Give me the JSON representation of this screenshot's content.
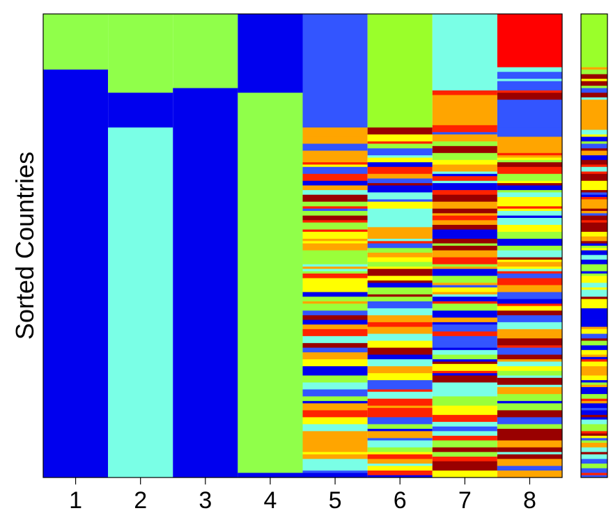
{
  "chart_data": {
    "type": "heatmap",
    "title": "",
    "ylabel": "Sorted Countries",
    "xlabel": "",
    "categories": [
      "1",
      "2",
      "3",
      "4",
      "5",
      "6",
      "7",
      "8"
    ],
    "grid": false,
    "legend": "none",
    "n_rows": 200,
    "colormap": [
      "#0000ee",
      "#3355ff",
      "#7affe6",
      "#9aff3a",
      "#ffff00",
      "#ffa500",
      "#ff2200",
      "#990000"
    ],
    "columns": [
      {
        "name": "1",
        "segments": [
          {
            "rows": [
              0,
              24
            ],
            "color": "#90ff4a"
          },
          {
            "rows": [
              24,
              200
            ],
            "color": "#0000ee"
          }
        ]
      },
      {
        "name": "2",
        "segments": [
          {
            "rows": [
              0,
              34
            ],
            "color": "#90ff4a"
          },
          {
            "rows": [
              34,
              49
            ],
            "color": "#0000ee"
          },
          {
            "rows": [
              49,
              200
            ],
            "color": "#7affe6"
          }
        ]
      },
      {
        "name": "3",
        "segments": [
          {
            "rows": [
              0,
              32
            ],
            "color": "#90ff4a"
          },
          {
            "rows": [
              32,
              200
            ],
            "color": "#0000ee"
          }
        ]
      },
      {
        "name": "4",
        "segments": [
          {
            "rows": [
              0,
              34
            ],
            "color": "#0000ee"
          },
          {
            "rows": [
              34,
              198
            ],
            "color": "#90ff4a"
          },
          {
            "rows": [
              198,
              200
            ],
            "color": "#0000ee"
          }
        ]
      },
      {
        "name": "5",
        "segments": [
          {
            "rows": [
              0,
              49
            ],
            "color": "#3355ff"
          }
        ]
      },
      {
        "name": "6",
        "segments": [
          {
            "rows": [
              0,
              49
            ],
            "color": "#9aff2a"
          }
        ]
      },
      {
        "name": "7",
        "segments": [
          {
            "rows": [
              0,
              33
            ],
            "color": "#7affe6"
          },
          {
            "rows": [
              33,
              35
            ],
            "color": "#ff2200"
          },
          {
            "rows": [
              35,
              48
            ],
            "color": "#ffa500"
          }
        ]
      },
      {
        "name": "8",
        "segments": [
          {
            "rows": [
              0,
              23
            ],
            "color": "#ff0000"
          },
          {
            "rows": [
              37,
              49
            ],
            "color": "#3355ff"
          }
        ]
      }
    ],
    "side_bar": {
      "segments": [
        {
          "rows": [
            0,
            23
          ],
          "color": "#9aff2a"
        },
        {
          "rows": [
            37,
            49
          ],
          "color": "#ffa500"
        }
      ]
    }
  }
}
